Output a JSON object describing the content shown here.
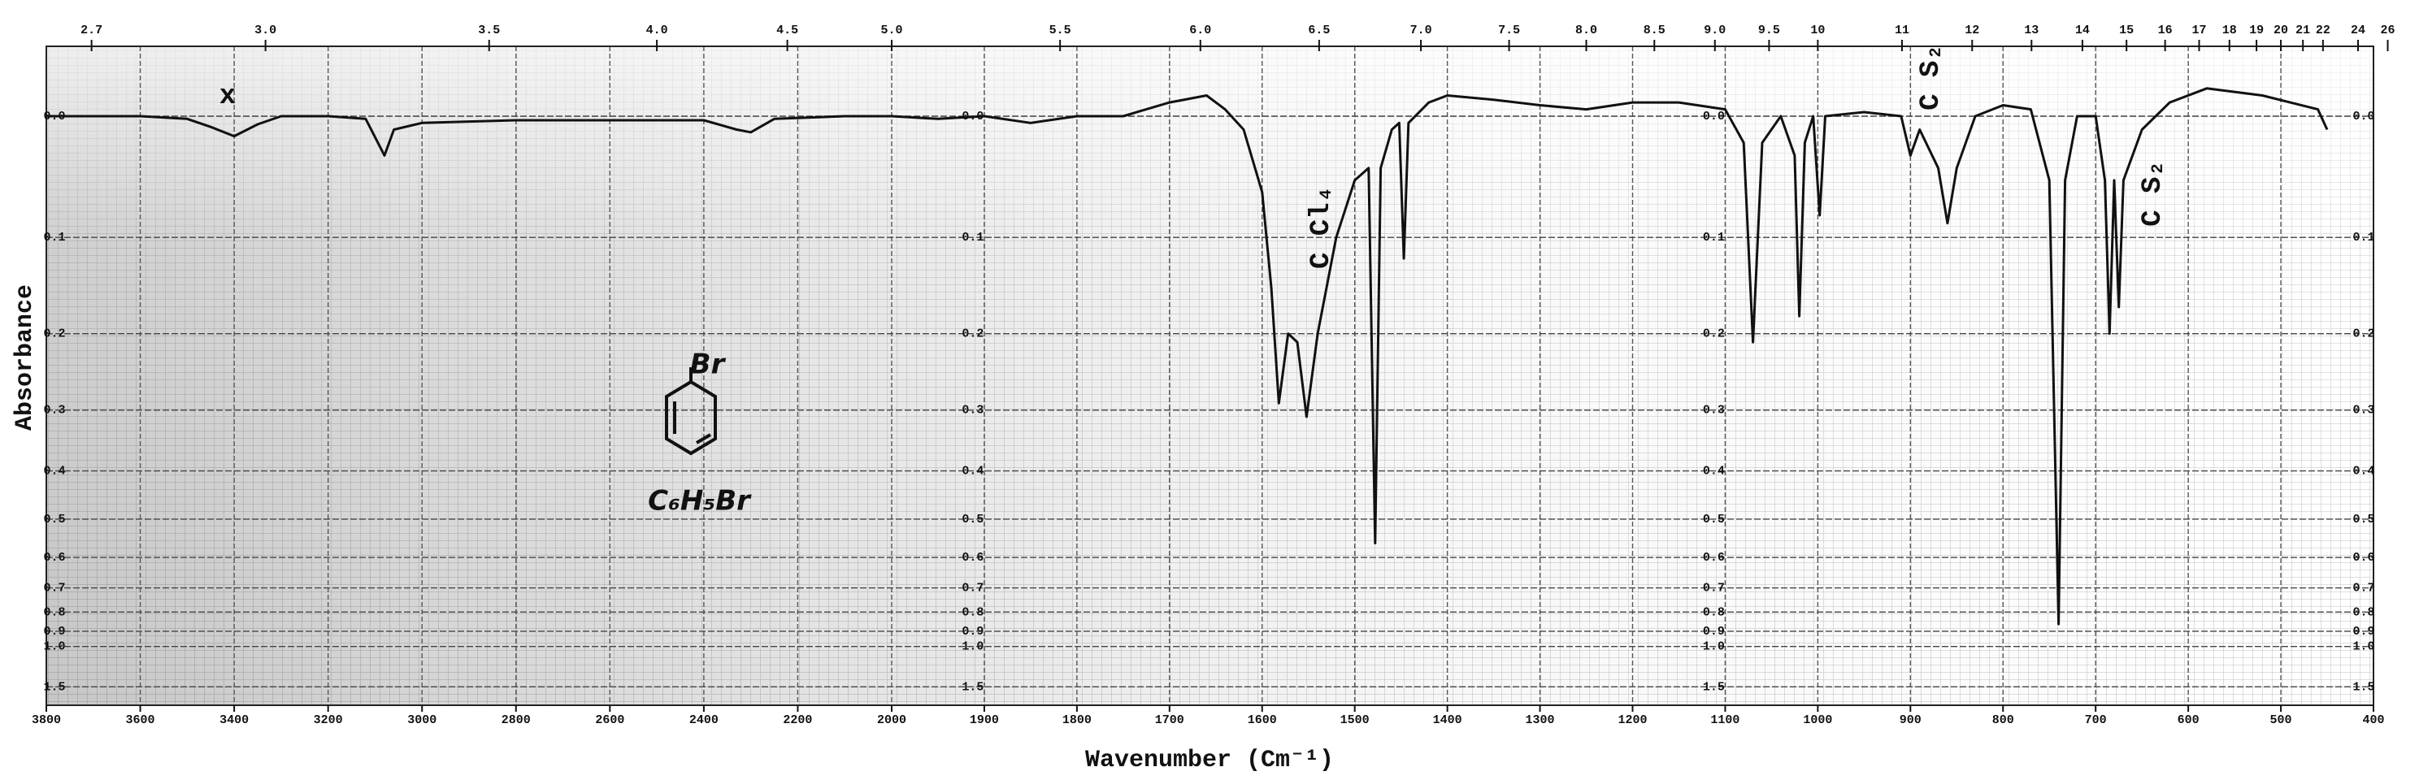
{
  "chart_data": {
    "type": "line",
    "x_label": "Wavenumber (Cm⁻¹)",
    "y_label": "Absorbance",
    "annotations": [
      "x",
      "C Cl₄",
      "C S₂",
      "C S₂",
      "Br",
      "C₆H₅Br"
    ],
    "color": "#111111",
    "yscale": "transmittance",
    "xscale_break": 2000,
    "xlim": [
      3800,
      400
    ],
    "ylim": [
      0,
      2
    ],
    "xticks": [
      3800,
      3600,
      3400,
      3200,
      3000,
      2800,
      2600,
      2400,
      2200,
      2000,
      1900,
      1800,
      1700,
      1600,
      1500,
      1400,
      1300,
      1200,
      1100,
      1000,
      900,
      800,
      700,
      600,
      500,
      400
    ],
    "x2ticks": [
      2.7,
      {
        "value": 3,
        "label": "3.0"
      },
      3.5,
      {
        "value": 4,
        "label": "4.0"
      },
      4.5,
      {
        "value": 5,
        "label": "5.0"
      },
      5.5,
      {
        "value": 6,
        "label": "6.0"
      },
      6.5,
      {
        "value": 7,
        "label": "7.0"
      },
      7.5,
      {
        "value": 8,
        "label": "8.0"
      },
      8.5,
      {
        "value": 9,
        "label": "9.0"
      },
      9.5,
      10,
      11,
      12,
      13,
      14,
      15,
      16,
      17,
      18,
      19,
      20,
      21,
      22,
      24,
      26
    ],
    "yticks": [
      {
        "value": 0,
        "label": "0.0"
      },
      0.1,
      0.2,
      0.3,
      0.4,
      0.5,
      0.6,
      0.7,
      0.8,
      0.9,
      {
        "value": 1,
        "label": "1.0"
      },
      1.5
    ],
    "grid": true,
    "x": [
      3800,
      3700,
      3600,
      3500,
      3450,
      3400,
      3350,
      3300,
      3200,
      3120,
      3080,
      3060,
      3000,
      2900,
      2800,
      2600,
      2400,
      2330,
      2300,
      2250,
      2100,
      2000,
      1950,
      1900,
      1850,
      1800,
      1750,
      1700,
      1660,
      1640,
      1620,
      1600,
      1590,
      1582,
      1572,
      1562,
      1552,
      1540,
      1520,
      1500,
      1485,
      1478,
      1472,
      1460,
      1452,
      1447,
      1442,
      1420,
      1400,
      1350,
      1300,
      1250,
      1200,
      1150,
      1100,
      1080,
      1070,
      1060,
      1040,
      1025,
      1020,
      1014,
      1005,
      998,
      992,
      950,
      910,
      900,
      890,
      870,
      860,
      850,
      830,
      800,
      770,
      750,
      740,
      733,
      720,
      700,
      690,
      685,
      680,
      675,
      670,
      650,
      620,
      580,
      520,
      460,
      450
    ],
    "values": [
      0.0,
      0.0,
      0.0,
      0.002,
      0.008,
      0.015,
      0.006,
      0.0,
      0.0,
      0.002,
      0.03,
      0.01,
      0.005,
      0.004,
      0.003,
      0.003,
      0.003,
      0.01,
      0.012,
      0.002,
      0.0,
      0.0,
      0.002,
      0.0,
      0.005,
      0.0,
      0.0,
      -0.01,
      -0.015,
      -0.005,
      0.01,
      0.06,
      0.15,
      0.29,
      0.2,
      0.21,
      0.31,
      0.2,
      0.1,
      0.05,
      0.04,
      0.56,
      0.04,
      0.01,
      0.005,
      0.12,
      0.005,
      -0.01,
      -0.015,
      -0.012,
      -0.008,
      -0.005,
      -0.01,
      -0.01,
      -0.005,
      0.02,
      0.21,
      0.02,
      0.0,
      0.03,
      0.18,
      0.02,
      0.0,
      0.08,
      0.0,
      -0.003,
      0.0,
      0.03,
      0.01,
      0.04,
      0.087,
      0.04,
      0.0,
      -0.008,
      -0.005,
      0.05,
      0.86,
      0.05,
      0.0,
      0.0,
      0.05,
      0.2,
      0.05,
      0.17,
      0.05,
      0.01,
      -0.01,
      -0.02,
      -0.015,
      -0.005,
      0.01
    ]
  }
}
